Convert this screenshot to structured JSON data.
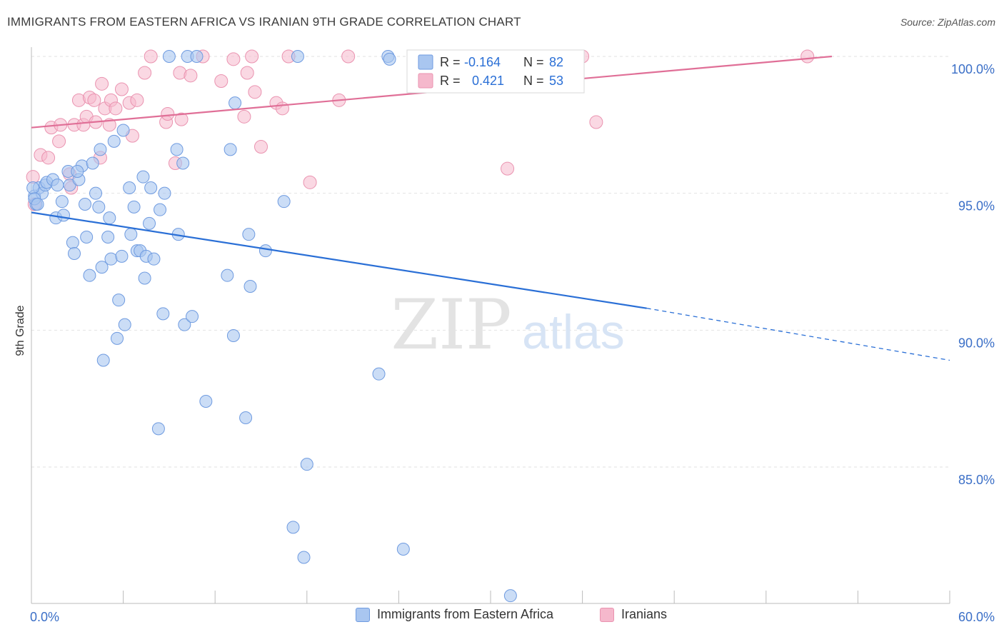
{
  "title": "IMMIGRANTS FROM EASTERN AFRICA VS IRANIAN 9TH GRADE CORRELATION CHART",
  "source": "Source: ZipAtlas.com",
  "watermark": {
    "zip": "ZIP",
    "atlas": "atlas"
  },
  "legend_box": {
    "rows": [
      {
        "r_label": "R = ",
        "r_value": "-0.164",
        "n_label": "N = ",
        "n_value": "82"
      },
      {
        "r_label": "R = ",
        "r_value": "0.421",
        "n_label": "N = ",
        "n_value": "53"
      }
    ]
  },
  "chart_data": {
    "type": "scatter",
    "title": "IMMIGRANTS FROM EASTERN AFRICA VS IRANIAN 9TH GRADE CORRELATION CHART",
    "xlabel": "",
    "ylabel": "9th Grade",
    "xlim": [
      0,
      60
    ],
    "ylim": [
      80,
      100.8
    ],
    "x_tick_labels": [
      "0.0%",
      "60.0%"
    ],
    "y_ticks": [
      85,
      90,
      95,
      100
    ],
    "y_tick_labels": [
      "85.0%",
      "90.0%",
      "95.0%",
      "100.0%"
    ],
    "grid": true,
    "legend_position": "bottom",
    "colors": {
      "blue_fill": "#a9c6f0",
      "blue_stroke": "#6f9be0",
      "blue_line": "#2a6fd6",
      "pink_fill": "#f5b8cc",
      "pink_stroke": "#ea93b0",
      "pink_line": "#e06f97",
      "tick_label": "#3b6fc7"
    },
    "series": [
      {
        "name": "Immigrants from Eastern Africa",
        "r": -0.164,
        "n": 82,
        "trend": {
          "x0": 0,
          "y0": 94.3,
          "x1": 40.2,
          "y1": 90.8,
          "dash_x1": 60,
          "dash_y1": 88.9
        },
        "points": [
          [
            0.2,
            94.9
          ],
          [
            0.3,
            94.6
          ],
          [
            0.5,
            95.2
          ],
          [
            0.7,
            95.0
          ],
          [
            0.9,
            95.3
          ],
          [
            1.0,
            95.4
          ],
          [
            1.4,
            95.5
          ],
          [
            1.6,
            94.1
          ],
          [
            2.0,
            94.7
          ],
          [
            2.1,
            94.2
          ],
          [
            2.4,
            95.8
          ],
          [
            2.5,
            95.3
          ],
          [
            2.7,
            93.2
          ],
          [
            2.8,
            92.8
          ],
          [
            3.1,
            95.5
          ],
          [
            3.3,
            96.0
          ],
          [
            3.5,
            94.6
          ],
          [
            3.6,
            93.4
          ],
          [
            3.8,
            92.0
          ],
          [
            4.0,
            96.1
          ],
          [
            4.2,
            95.0
          ],
          [
            4.4,
            94.5
          ],
          [
            4.5,
            96.6
          ],
          [
            4.6,
            92.3
          ],
          [
            4.7,
            88.9
          ],
          [
            5.0,
            93.4
          ],
          [
            5.1,
            94.1
          ],
          [
            5.2,
            92.6
          ],
          [
            5.4,
            96.9
          ],
          [
            5.6,
            89.7
          ],
          [
            5.7,
            91.1
          ],
          [
            5.9,
            92.7
          ],
          [
            6.0,
            97.3
          ],
          [
            6.1,
            90.2
          ],
          [
            6.4,
            95.2
          ],
          [
            6.5,
            93.5
          ],
          [
            6.7,
            94.5
          ],
          [
            6.9,
            92.9
          ],
          [
            7.1,
            92.9
          ],
          [
            7.3,
            95.6
          ],
          [
            7.4,
            91.9
          ],
          [
            7.5,
            92.7
          ],
          [
            7.7,
            93.9
          ],
          [
            7.8,
            95.2
          ],
          [
            8.0,
            92.6
          ],
          [
            8.3,
            86.4
          ],
          [
            8.4,
            94.4
          ],
          [
            8.6,
            90.6
          ],
          [
            8.7,
            95.0
          ],
          [
            9.0,
            100.0
          ],
          [
            9.6,
            93.5
          ],
          [
            9.5,
            96.6
          ],
          [
            9.9,
            96.1
          ],
          [
            10.0,
            90.2
          ],
          [
            10.2,
            100.0
          ],
          [
            10.5,
            90.5
          ],
          [
            10.8,
            100.0
          ],
          [
            11.4,
            87.4
          ],
          [
            12.8,
            92.0
          ],
          [
            13.0,
            96.6
          ],
          [
            13.2,
            89.8
          ],
          [
            13.3,
            98.3
          ],
          [
            14.0,
            86.8
          ],
          [
            14.2,
            93.5
          ],
          [
            14.3,
            91.6
          ],
          [
            15.3,
            92.9
          ],
          [
            16.5,
            94.7
          ],
          [
            17.1,
            82.8
          ],
          [
            17.4,
            100.0
          ],
          [
            17.8,
            81.7
          ],
          [
            18.0,
            85.1
          ],
          [
            22.7,
            88.4
          ],
          [
            23.3,
            100.0
          ],
          [
            23.4,
            99.9
          ],
          [
            24.3,
            82.0
          ],
          [
            26.1,
            100.0
          ],
          [
            31.3,
            80.3
          ],
          [
            0.1,
            95.2
          ],
          [
            0.2,
            94.8
          ],
          [
            0.4,
            94.6
          ],
          [
            3.0,
            95.8
          ],
          [
            1.7,
            95.3
          ]
        ]
      },
      {
        "name": "Iranians",
        "r": 0.421,
        "n": 53,
        "trend": {
          "x0": 0,
          "y0": 97.4,
          "x1": 52.3,
          "y1": 100.0
        },
        "points": [
          [
            0.1,
            95.6
          ],
          [
            0.2,
            94.6
          ],
          [
            0.6,
            96.4
          ],
          [
            1.1,
            96.3
          ],
          [
            1.3,
            97.4
          ],
          [
            1.8,
            96.9
          ],
          [
            1.9,
            97.5
          ],
          [
            2.5,
            95.7
          ],
          [
            2.6,
            95.2
          ],
          [
            2.8,
            97.5
          ],
          [
            3.1,
            98.4
          ],
          [
            3.4,
            97.5
          ],
          [
            3.6,
            97.8
          ],
          [
            3.8,
            98.5
          ],
          [
            4.1,
            98.4
          ],
          [
            4.2,
            97.6
          ],
          [
            4.5,
            96.3
          ],
          [
            4.6,
            99.0
          ],
          [
            4.8,
            98.1
          ],
          [
            5.1,
            97.5
          ],
          [
            5.2,
            98.4
          ],
          [
            5.5,
            98.1
          ],
          [
            5.9,
            98.8
          ],
          [
            6.4,
            98.3
          ],
          [
            6.6,
            97.1
          ],
          [
            6.9,
            98.4
          ],
          [
            7.4,
            99.4
          ],
          [
            7.8,
            100.0
          ],
          [
            8.8,
            97.6
          ],
          [
            8.9,
            97.9
          ],
          [
            9.4,
            96.1
          ],
          [
            9.7,
            99.4
          ],
          [
            9.8,
            97.7
          ],
          [
            10.4,
            99.3
          ],
          [
            11.2,
            100.0
          ],
          [
            12.4,
            99.1
          ],
          [
            13.2,
            99.9
          ],
          [
            13.9,
            97.8
          ],
          [
            14.1,
            99.4
          ],
          [
            14.4,
            100.0
          ],
          [
            14.6,
            98.7
          ],
          [
            15.0,
            96.7
          ],
          [
            16.0,
            98.3
          ],
          [
            16.4,
            98.1
          ],
          [
            16.8,
            100.0
          ],
          [
            18.2,
            95.4
          ],
          [
            20.1,
            98.4
          ],
          [
            20.7,
            100.0
          ],
          [
            26.0,
            99.4
          ],
          [
            31.1,
            95.9
          ],
          [
            36.0,
            100.0
          ],
          [
            36.9,
            97.6
          ],
          [
            50.7,
            100.0
          ]
        ]
      }
    ]
  },
  "bottom_legend": [
    {
      "label": "Immigrants from Eastern Africa"
    },
    {
      "label": "Iranians"
    }
  ]
}
